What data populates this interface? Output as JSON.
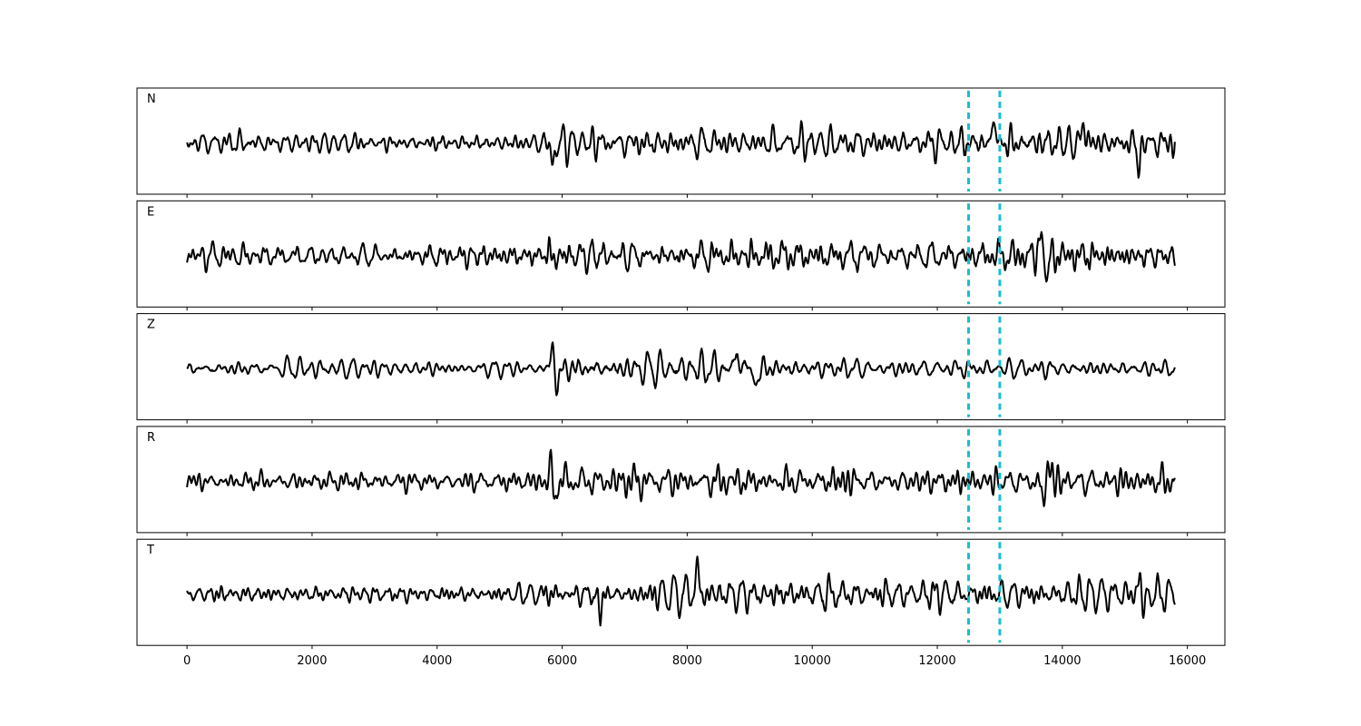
{
  "chart_data": {
    "type": "line",
    "title": "",
    "xlabel": "",
    "ylabel": "",
    "xlim": [
      -800,
      16600
    ],
    "ylim": [
      -1,
      1
    ],
    "xticks": [
      0,
      2000,
      4000,
      6000,
      8000,
      10000,
      12000,
      14000,
      16000
    ],
    "x_range": [
      0,
      15800
    ],
    "grid": false,
    "legend": "none",
    "trace_color": "#000000",
    "marker_color": "#17becf",
    "markers": [
      {
        "x": 12500,
        "style": "dashed"
      },
      {
        "x": 13000,
        "style": "dashed"
      }
    ],
    "panels": [
      {
        "label": "N",
        "seed": 11,
        "base_amp": 0.24,
        "envelope": [
          [
            0,
            1.0
          ],
          [
            900,
            1.5
          ],
          [
            1300,
            1.0
          ],
          [
            5500,
            1.1
          ],
          [
            5800,
            1.8
          ],
          [
            9000,
            1.7
          ],
          [
            11200,
            1.7
          ],
          [
            12800,
            1.9
          ],
          [
            14500,
            2.1
          ],
          [
            15800,
            2.0
          ]
        ],
        "spikes": [
          [
            5850,
            -0.9
          ],
          [
            12900,
            0.95
          ],
          [
            15220,
            -0.92
          ],
          [
            14350,
            0.85
          ]
        ]
      },
      {
        "label": "E",
        "seed": 23,
        "base_amp": 0.2,
        "envelope": [
          [
            0,
            1.0
          ],
          [
            5500,
            1.1
          ],
          [
            5800,
            1.8
          ],
          [
            8000,
            1.6
          ],
          [
            12500,
            1.5
          ],
          [
            13600,
            1.9
          ],
          [
            15800,
            1.7
          ]
        ],
        "spikes": [
          [
            5800,
            0.8
          ],
          [
            5820,
            -0.75
          ],
          [
            13650,
            0.9
          ],
          [
            13750,
            -0.85
          ]
        ]
      },
      {
        "label": "Z",
        "seed": 37,
        "base_amp": 0.2,
        "envelope": [
          [
            0,
            1.0
          ],
          [
            2000,
            1.2
          ],
          [
            5500,
            1.1
          ],
          [
            5800,
            2.0
          ],
          [
            9000,
            2.0
          ],
          [
            11000,
            1.3
          ],
          [
            15800,
            1.2
          ]
        ],
        "spikes": [
          [
            5850,
            1.0
          ],
          [
            5920,
            -0.95
          ],
          [
            9100,
            -0.85
          ],
          [
            8800,
            0.8
          ]
        ]
      },
      {
        "label": "R",
        "seed": 53,
        "base_amp": 0.2,
        "envelope": [
          [
            0,
            1.0
          ],
          [
            5500,
            1.0
          ],
          [
            5800,
            1.9
          ],
          [
            8000,
            1.6
          ],
          [
            12500,
            1.4
          ],
          [
            13700,
            1.9
          ],
          [
            15800,
            1.6
          ]
        ],
        "spikes": [
          [
            5830,
            0.85
          ],
          [
            5860,
            -0.95
          ],
          [
            13780,
            0.95
          ],
          [
            13700,
            -0.95
          ]
        ]
      },
      {
        "label": "T",
        "seed": 71,
        "base_amp": 0.24,
        "envelope": [
          [
            0,
            1.0
          ],
          [
            900,
            1.6
          ],
          [
            1300,
            1.2
          ],
          [
            5500,
            1.3
          ],
          [
            5800,
            1.9
          ],
          [
            8100,
            2.2
          ],
          [
            11500,
            2.0
          ],
          [
            12800,
            1.8
          ],
          [
            14500,
            2.1
          ],
          [
            15800,
            2.0
          ]
        ],
        "spikes": [
          [
            8150,
            1.0
          ],
          [
            15250,
            0.95
          ],
          [
            15300,
            -0.92
          ],
          [
            6600,
            -0.8
          ]
        ]
      }
    ]
  }
}
